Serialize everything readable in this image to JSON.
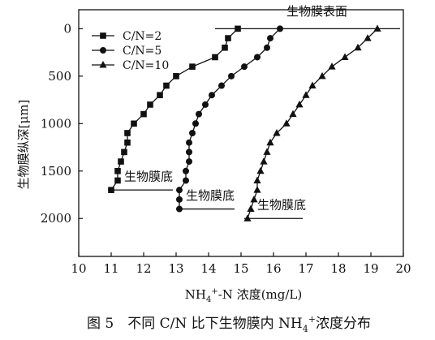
{
  "chart_data": {
    "type": "line",
    "xlabel": "NH4+-N 浓度(mg/L)",
    "xlabel_parts": {
      "base": "NH",
      "sub": "4",
      "sup": "+",
      "rest": "-N 浓度(mg/L)"
    },
    "ylabel": "生物膜纵深[μm]",
    "xlim": [
      10,
      20
    ],
    "ylim": [
      2400,
      -200
    ],
    "y_inverted": true,
    "x_ticks": [
      10,
      11,
      12,
      13,
      14,
      15,
      16,
      17,
      18,
      19,
      20
    ],
    "y_ticks": [
      0,
      500,
      1000,
      1500,
      2000
    ],
    "grid": false,
    "legend_position": "top-left",
    "series": [
      {
        "name": "C/N=2",
        "marker": "square",
        "points": [
          [
            14.9,
            0
          ],
          [
            14.6,
            100
          ],
          [
            14.5,
            200
          ],
          [
            14.2,
            300
          ],
          [
            13.5,
            400
          ],
          [
            13.0,
            500
          ],
          [
            12.7,
            600
          ],
          [
            12.5,
            700
          ],
          [
            12.2,
            800
          ],
          [
            12.0,
            900
          ],
          [
            11.7,
            1000
          ],
          [
            11.5,
            1100
          ],
          [
            11.5,
            1200
          ],
          [
            11.4,
            1300
          ],
          [
            11.3,
            1400
          ],
          [
            11.2,
            1500
          ],
          [
            11.2,
            1600
          ],
          [
            11.0,
            1700
          ]
        ]
      },
      {
        "name": "C/N=5",
        "marker": "circle",
        "points": [
          [
            16.2,
            0
          ],
          [
            15.9,
            100
          ],
          [
            15.8,
            200
          ],
          [
            15.5,
            300
          ],
          [
            15.1,
            400
          ],
          [
            14.7,
            500
          ],
          [
            14.4,
            600
          ],
          [
            14.1,
            700
          ],
          [
            13.9,
            800
          ],
          [
            13.7,
            900
          ],
          [
            13.6,
            1000
          ],
          [
            13.5,
            1100
          ],
          [
            13.4,
            1200
          ],
          [
            13.4,
            1300
          ],
          [
            13.4,
            1400
          ],
          [
            13.3,
            1500
          ],
          [
            13.3,
            1600
          ],
          [
            13.1,
            1700
          ],
          [
            13.1,
            1800
          ],
          [
            13.1,
            1900
          ]
        ]
      },
      {
        "name": "C/N=10",
        "marker": "triangle",
        "points": [
          [
            19.2,
            0
          ],
          [
            18.9,
            100
          ],
          [
            18.6,
            200
          ],
          [
            18.2,
            300
          ],
          [
            17.8,
            400
          ],
          [
            17.5,
            500
          ],
          [
            17.2,
            600
          ],
          [
            17.0,
            700
          ],
          [
            16.8,
            800
          ],
          [
            16.6,
            900
          ],
          [
            16.4,
            1000
          ],
          [
            16.1,
            1100
          ],
          [
            15.9,
            1200
          ],
          [
            15.8,
            1300
          ],
          [
            15.7,
            1400
          ],
          [
            15.6,
            1500
          ],
          [
            15.5,
            1600
          ],
          [
            15.5,
            1700
          ],
          [
            15.4,
            1800
          ],
          [
            15.3,
            1900
          ],
          [
            15.2,
            2000
          ]
        ]
      }
    ],
    "annotations": [
      {
        "text": "生物膜表面",
        "x": 16.4,
        "y": -140,
        "line_x": [
          14.2,
          19.9
        ],
        "line_y": 0
      },
      {
        "text": "生物膜底",
        "x": 11.4,
        "y": 1600,
        "line_x": [
          10.9,
          12.9
        ],
        "line_y": 1700
      },
      {
        "text": "生物膜底",
        "x": 13.3,
        "y": 1800,
        "line_x": [
          13.0,
          14.8
        ],
        "line_y": 1900
      },
      {
        "text": "生物膜底",
        "x": 15.5,
        "y": 1900,
        "line_x": [
          15.1,
          16.9
        ],
        "line_y": 2000
      }
    ]
  },
  "caption": {
    "prefix": "图 5　不同 C/N 比下生物膜内 NH",
    "sub": "4",
    "sup": "+",
    "suffix": "浓度分布"
  }
}
